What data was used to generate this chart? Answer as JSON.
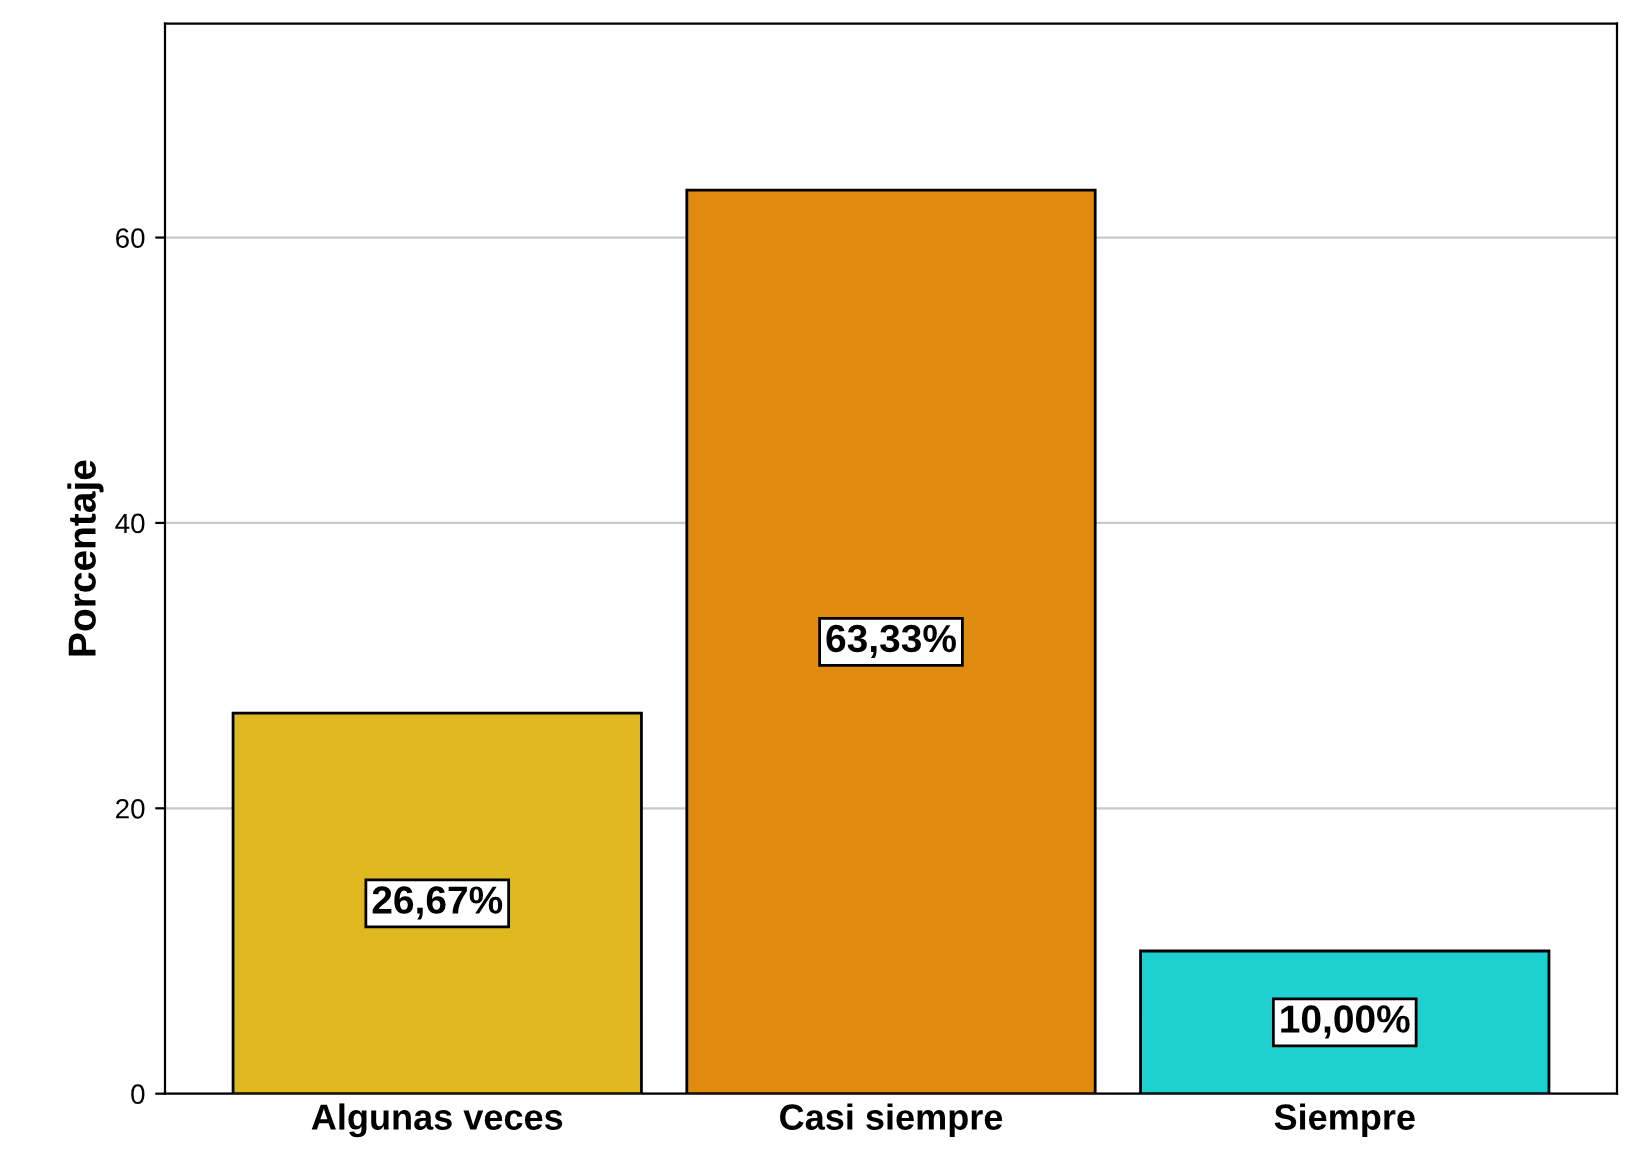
{
  "chart_data": {
    "type": "bar",
    "ylabel": "Porcentaje",
    "categories": [
      "Algunas veces",
      "Casi siempre",
      "Siempre"
    ],
    "values": [
      26.67,
      63.33,
      10.0
    ],
    "colors": [
      "#e0b820",
      "#e08a10",
      "#1fd0d0"
    ],
    "value_labels": [
      "26,67%",
      "63,33%",
      "10,00%"
    ],
    "ylim": [
      0,
      75
    ],
    "yticks": [
      0,
      20,
      40,
      60
    ],
    "grid": "y"
  }
}
